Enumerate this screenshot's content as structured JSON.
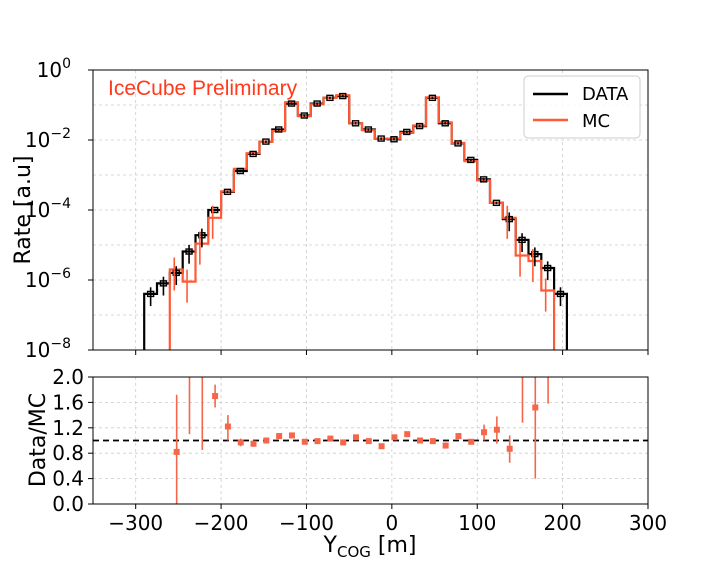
{
  "colors": {
    "data": "#000000",
    "mc": "#ff5a36",
    "ratio": "#f4674a",
    "watermark": "#ff3a1c",
    "grid": "#cccccc"
  },
  "chart_data": [
    {
      "type": "step-histogram",
      "title": "",
      "ylabel": "Rate [a.u]",
      "yscale": "log",
      "ylim": [
        1e-08,
        1
      ],
      "xlim": [
        -350,
        300
      ],
      "ytick_labels": [
        {
          "value": 1,
          "base": "10",
          "exp": "0"
        },
        {
          "value": 0.01,
          "base": "10",
          "exp": "−2"
        },
        {
          "value": 0.0001,
          "base": "10",
          "exp": "−4"
        },
        {
          "value": 1e-06,
          "base": "10",
          "exp": "−6"
        },
        {
          "value": 1e-08,
          "base": "10",
          "exp": "−8"
        }
      ],
      "grid": true,
      "legend_position": "top-right",
      "annotation": "IceCube Preliminary",
      "bin_edges": [
        -290,
        -275,
        -260,
        -245,
        -230,
        -215,
        -200,
        -185,
        -170,
        -155,
        -140,
        -125,
        -110,
        -95,
        -80,
        -65,
        -50,
        -35,
        -20,
        -5,
        10,
        25,
        40,
        55,
        70,
        85,
        100,
        115,
        130,
        145,
        160,
        175,
        190,
        205
      ],
      "series": [
        {
          "name": "DATA",
          "values": [
            4e-07,
            8e-07,
            1.6e-06,
            6.5e-06,
            1.9e-05,
            0.0001,
            0.00033,
            0.0013,
            0.004,
            0.009,
            0.02,
            0.11,
            0.05,
            0.11,
            0.16,
            0.18,
            0.03,
            0.02,
            0.011,
            0.0105,
            0.017,
            0.025,
            0.16,
            0.03,
            0.008,
            0.0027,
            0.00075,
            0.00016,
            5.5e-05,
            1.4e-05,
            5.5e-06,
            2.2e-06,
            4e-07
          ]
        },
        {
          "name": "MC",
          "values": [
            null,
            null,
            2e-06,
            9e-07,
            1.1e-05,
            6e-05,
            0.00034,
            0.0015,
            0.0042,
            0.009,
            0.018,
            0.12,
            0.048,
            0.105,
            0.16,
            0.19,
            0.03,
            0.019,
            0.011,
            0.011,
            0.016,
            0.026,
            0.165,
            0.032,
            0.0082,
            0.0025,
            0.0007,
            0.00016,
            6e-05,
            5e-06,
            3.5e-06,
            5e-07,
            null
          ]
        }
      ]
    },
    {
      "type": "scatter-errorbar",
      "title": "",
      "xlabel_main": "Y",
      "xlabel_sub": "COG",
      "xlabel_unit": " [m]",
      "ylabel": "Data/MC",
      "ylim": [
        0,
        2
      ],
      "xlim": [
        -350,
        300
      ],
      "xticks": [
        -300,
        -200,
        -100,
        0,
        100,
        200,
        300
      ],
      "xtick_labels": [
        "−300",
        "−200",
        "−100",
        "0",
        "100",
        "200",
        "300"
      ],
      "yticks": [
        0,
        0.4,
        0.8,
        1.2,
        1.6,
        2.0
      ],
      "ytick_labels": [
        "0.0",
        "0.4",
        "0.8",
        "1.2",
        "1.6",
        "2.0"
      ],
      "reference_line": 1.0,
      "grid": true,
      "points": [
        {
          "x": -252,
          "y": 0.82,
          "lo": 0.0,
          "hi": 1.72
        },
        {
          "x": -237,
          "y": null,
          "lo": 1.1,
          "hi": 2.0
        },
        {
          "x": -222,
          "y": null,
          "lo": 0.85,
          "hi": 2.0
        },
        {
          "x": -207,
          "y": 1.7,
          "lo": 1.52,
          "hi": 1.88
        },
        {
          "x": -192,
          "y": 1.22,
          "lo": 1.0,
          "hi": 1.4
        },
        {
          "x": -177,
          "y": 0.97,
          "lo": 0.91,
          "hi": 1.03
        },
        {
          "x": -162,
          "y": 0.95,
          "lo": 0.9,
          "hi": 1.0
        },
        {
          "x": -147,
          "y": 1.0,
          "lo": 0.96,
          "hi": 1.04
        },
        {
          "x": -132,
          "y": 1.07,
          "lo": 1.03,
          "hi": 1.1
        },
        {
          "x": -117,
          "y": 1.08,
          "lo": 1.05,
          "hi": 1.11
        },
        {
          "x": -102,
          "y": 0.98,
          "lo": 0.95,
          "hi": 1.01
        },
        {
          "x": -87,
          "y": 0.99,
          "lo": 0.96,
          "hi": 1.02
        },
        {
          "x": -72,
          "y": 1.03,
          "lo": 1.0,
          "hi": 1.06
        },
        {
          "x": -57,
          "y": 0.97,
          "lo": 0.94,
          "hi": 1.0
        },
        {
          "x": -42,
          "y": 1.05,
          "lo": 1.02,
          "hi": 1.08
        },
        {
          "x": -27,
          "y": 0.99,
          "lo": 0.96,
          "hi": 1.02
        },
        {
          "x": -12,
          "y": 0.91,
          "lo": 0.88,
          "hi": 0.94
        },
        {
          "x": 3,
          "y": 1.05,
          "lo": 1.02,
          "hi": 1.08
        },
        {
          "x": 18,
          "y": 1.1,
          "lo": 1.07,
          "hi": 1.13
        },
        {
          "x": 33,
          "y": 1.0,
          "lo": 0.97,
          "hi": 1.03
        },
        {
          "x": 48,
          "y": 0.99,
          "lo": 0.96,
          "hi": 1.02
        },
        {
          "x": 63,
          "y": 0.92,
          "lo": 0.89,
          "hi": 0.95
        },
        {
          "x": 78,
          "y": 1.07,
          "lo": 1.04,
          "hi": 1.1
        },
        {
          "x": 93,
          "y": 0.98,
          "lo": 0.94,
          "hi": 1.02
        },
        {
          "x": 108,
          "y": 1.13,
          "lo": 1.0,
          "hi": 1.25
        },
        {
          "x": 123,
          "y": 1.17,
          "lo": 0.95,
          "hi": 1.38
        },
        {
          "x": 138,
          "y": 0.87,
          "lo": 0.65,
          "hi": 1.08
        },
        {
          "x": 153,
          "y": null,
          "lo": 1.28,
          "hi": 2.0
        },
        {
          "x": 168,
          "y": 1.52,
          "lo": 0.4,
          "hi": 2.0
        },
        {
          "x": 183,
          "y": null,
          "lo": 1.58,
          "hi": 2.0
        }
      ]
    }
  ]
}
